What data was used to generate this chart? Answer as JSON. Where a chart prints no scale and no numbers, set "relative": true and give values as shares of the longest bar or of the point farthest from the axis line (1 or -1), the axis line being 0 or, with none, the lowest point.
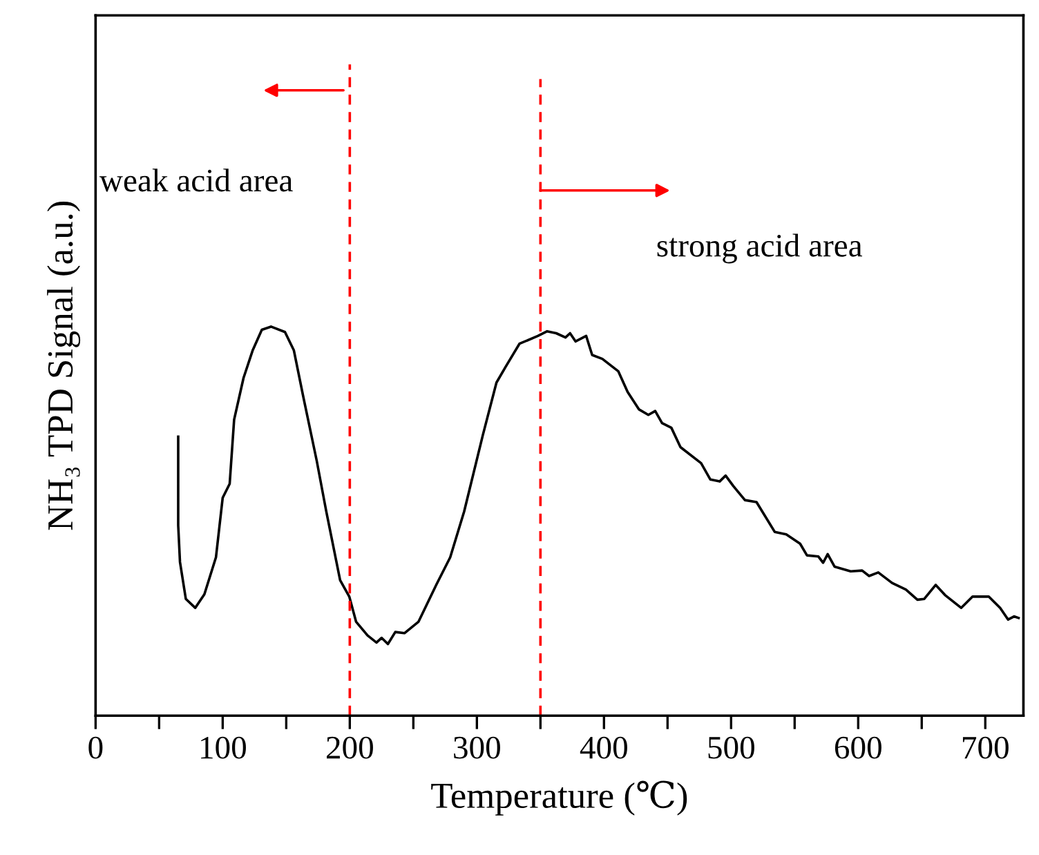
{
  "chart_data": {
    "type": "line",
    "xlabel": "Temperature (℃)",
    "ylabel": "NH₃ TPD Signal (a.u.)",
    "relative": true,
    "grid": false,
    "marker": "none",
    "line_style": "solid",
    "xlim": [
      0,
      730
    ],
    "xticks": [
      0,
      {
        "value": 50,
        "label": null
      },
      100,
      {
        "value": 150,
        "label": null
      },
      200,
      {
        "value": 250,
        "label": null
      },
      300,
      {
        "value": 350,
        "label": null
      },
      400,
      {
        "value": 450,
        "label": null
      },
      500,
      {
        "value": 550,
        "label": null
      },
      600,
      {
        "value": 650,
        "label": null
      },
      700
    ],
    "x": [
      65,
      65,
      66.4,
      71,
      78.4,
      85.6,
      94.7,
      100,
      105.5,
      109,
      116.4,
      123.6,
      130.8,
      138,
      149,
      156,
      163.4,
      174,
      181.5,
      192.4,
      199.6,
      205,
      214,
      221,
      225,
      230,
      235.8,
      243,
      254,
      268,
      279,
      290,
      304.6,
      315.4,
      322.7,
      333.5,
      348,
      355.3,
      362.4,
      369.7,
      373.3,
      377.6,
      386,
      390.7,
      398.7,
      411.3,
      418.6,
      427.6,
      434.9,
      440.3,
      445.7,
      453,
      460.2,
      476.4,
      483.7,
      491,
      495.7,
      501.8,
      510.9,
      520,
      534.4,
      543.4,
      554.3,
      559.7,
      568.7,
      572.4,
      576,
      581.4,
      594.1,
      603.1,
      608.6,
      615.8,
      626.7,
      637.5,
      646.6,
      652,
      661,
      668.3,
      681,
      690,
      702.7,
      711.7,
      717.9,
      722.6,
      726.2
    ],
    "series": [
      {
        "color": "#000000",
        "values": [
          0.717,
          0.489,
          0.395,
          0.3,
          0.277,
          0.312,
          0.407,
          0.56,
          0.596,
          0.761,
          0.868,
          0.939,
          0.992,
          1.0,
          0.986,
          0.939,
          0.82,
          0.655,
          0.525,
          0.348,
          0.306,
          0.241,
          0.206,
          0.188,
          0.2,
          0.184,
          0.215,
          0.212,
          0.241,
          0.336,
          0.407,
          0.525,
          0.72,
          0.856,
          0.897,
          0.956,
          0.976,
          0.988,
          0.983,
          0.972,
          0.983,
          0.962,
          0.976,
          0.927,
          0.917,
          0.885,
          0.832,
          0.787,
          0.773,
          0.783,
          0.752,
          0.74,
          0.69,
          0.649,
          0.607,
          0.602,
          0.617,
          0.59,
          0.554,
          0.549,
          0.472,
          0.466,
          0.442,
          0.412,
          0.409,
          0.393,
          0.415,
          0.383,
          0.371,
          0.373,
          0.359,
          0.368,
          0.341,
          0.324,
          0.298,
          0.3,
          0.336,
          0.31,
          0.277,
          0.306,
          0.306,
          0.277,
          0.247,
          0.255,
          0.251
        ]
      }
    ],
    "ref_lines": [
      {
        "axis": "x",
        "value": 200,
        "color": "#ff0000",
        "line_style": "dashed"
      },
      {
        "axis": "x",
        "value": 350,
        "color": "#ff0000",
        "line_style": "dashed"
      }
    ],
    "annotations": [
      "weak acid area",
      "strong acid area"
    ]
  }
}
